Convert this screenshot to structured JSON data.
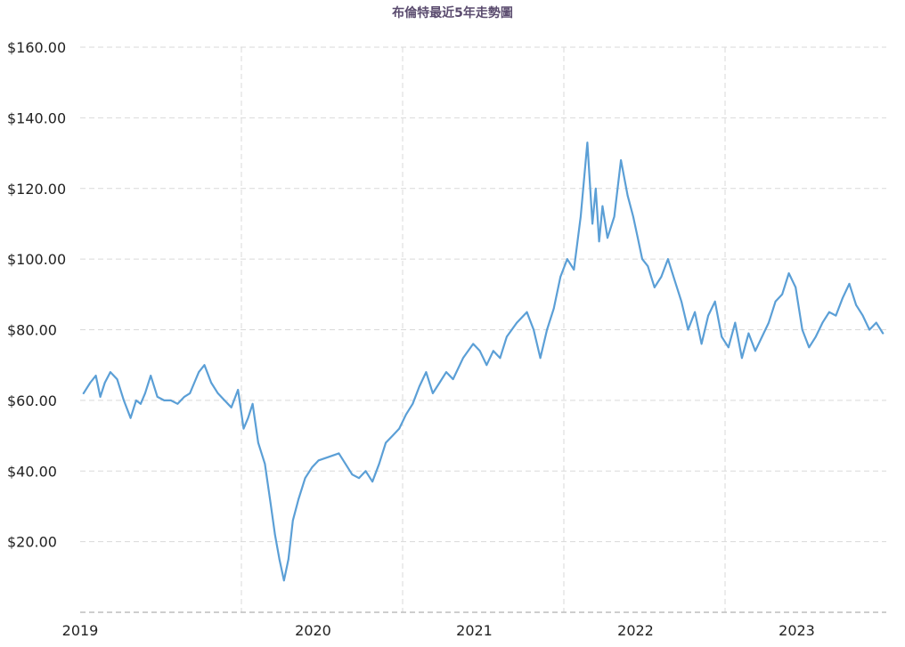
{
  "chart_data": {
    "type": "line",
    "title": "布倫特最近5年走勢圖",
    "xlabel": "",
    "ylabel": "",
    "ylim": [
      0,
      160
    ],
    "yticks": [
      20,
      40,
      60,
      80,
      100,
      120,
      140,
      160
    ],
    "ytick_labels": [
      "$20.00",
      "$40.00",
      "$60.00",
      "$80.00",
      "$100.00",
      "$120.00",
      "$140.00",
      "$160.00"
    ],
    "xlim": [
      "2019-01",
      "2024-01"
    ],
    "xtick_labels": [
      "2019",
      "2020",
      "2021",
      "2022",
      "2023"
    ],
    "grid": true,
    "line_color": "#5b9fd6",
    "series": [
      {
        "x": [
          "2019-01",
          "2019-01",
          "2019-02",
          "2019-02",
          "2019-02",
          "2019-03",
          "2019-03",
          "2019-04",
          "2019-04",
          "2019-05",
          "2019-05",
          "2019-05",
          "2019-06",
          "2019-06",
          "2019-07",
          "2019-07",
          "2019-08",
          "2019-08",
          "2019-09",
          "2019-09",
          "2019-09",
          "2019-10",
          "2019-10",
          "2019-11",
          "2019-11",
          "2019-12",
          "2019-12",
          "2020-01",
          "2020-01",
          "2020-01",
          "2020-02",
          "2020-02",
          "2020-03",
          "2020-03",
          "2020-03",
          "2020-04",
          "2020-04",
          "2020-04",
          "2020-05",
          "2020-05",
          "2020-06",
          "2020-06",
          "2020-07",
          "2020-08",
          "2020-08",
          "2020-09",
          "2020-09",
          "2020-10",
          "2020-10",
          "2020-11",
          "2020-11",
          "2020-12",
          "2020-12",
          "2021-01",
          "2021-01",
          "2021-02",
          "2021-02",
          "2021-03",
          "2021-03",
          "2021-04",
          "2021-04",
          "2021-05",
          "2021-06",
          "2021-06",
          "2021-07",
          "2021-07",
          "2021-08",
          "2021-08",
          "2021-09",
          "2021-10",
          "2021-10",
          "2021-11",
          "2021-11",
          "2021-12",
          "2021-12",
          "2022-01",
          "2022-01",
          "2022-02",
          "2022-02",
          "2022-03",
          "2022-03",
          "2022-03",
          "2022-03",
          "2022-04",
          "2022-04",
          "2022-05",
          "2022-05",
          "2022-06",
          "2022-06",
          "2022-06",
          "2022-07",
          "2022-07",
          "2022-08",
          "2022-08",
          "2022-09",
          "2022-09",
          "2022-10",
          "2022-10",
          "2022-11",
          "2022-11",
          "2022-12",
          "2022-12",
          "2023-01",
          "2023-01",
          "2023-02",
          "2023-02",
          "2023-03",
          "2023-03",
          "2023-04",
          "2023-04",
          "2023-05",
          "2023-05",
          "2023-06",
          "2023-06",
          "2023-07",
          "2023-07",
          "2023-08",
          "2023-08",
          "2023-09",
          "2023-09",
          "2023-10",
          "2023-10",
          "2023-11",
          "2023-11",
          "2023-12",
          "2023-12"
        ],
        "y": [
          62,
          65,
          67,
          61,
          65,
          68,
          66,
          60,
          55,
          60,
          59,
          62,
          67,
          61,
          60,
          60,
          59,
          61,
          62,
          65,
          68,
          70,
          65,
          62,
          60,
          58,
          63,
          52,
          55,
          59,
          48,
          42,
          31,
          22,
          15,
          9,
          15,
          26,
          32,
          38,
          41,
          43,
          44,
          45,
          42,
          39,
          38,
          40,
          37,
          42,
          48,
          50,
          52,
          56,
          59,
          64,
          68,
          62,
          65,
          68,
          66,
          72,
          76,
          74,
          70,
          74,
          72,
          78,
          82,
          85,
          80,
          72,
          80,
          86,
          95,
          100,
          97,
          112,
          133,
          110,
          120,
          105,
          115,
          106,
          112,
          128,
          118,
          112,
          106,
          100,
          98,
          92,
          95,
          100,
          94,
          88,
          80,
          85,
          76,
          84,
          88,
          78,
          75,
          82,
          72,
          79,
          74,
          78,
          82,
          88,
          90,
          96,
          92,
          80,
          75,
          78,
          82,
          85,
          84,
          89,
          93,
          87,
          84,
          80,
          82,
          79
        ]
      }
    ]
  }
}
